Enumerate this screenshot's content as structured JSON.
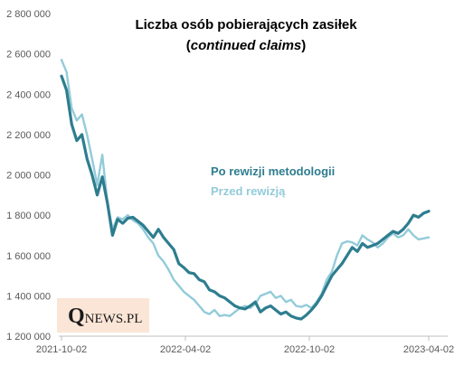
{
  "chart_data": {
    "type": "line",
    "title_line1": "Liczba osób pobierających zasiłek",
    "title_line2": "continued claims",
    "ylim": [
      1200000,
      2800000
    ],
    "y_ticks": [
      1200000,
      1400000,
      1600000,
      1800000,
      2000000,
      2200000,
      2400000,
      2600000,
      2800000
    ],
    "y_tick_labels": [
      "1 200 000",
      "1 400 000",
      "1 600 000",
      "1 800 000",
      "2 000 000",
      "2 200 000",
      "2 400 000",
      "2 600 000",
      "2 800 000"
    ],
    "x_ticks": [
      "2021-10-02",
      "2022-04-02",
      "2022-10-02",
      "2023-04-02"
    ],
    "grid": false,
    "legend_position": "center-right",
    "series": [
      {
        "name": "Po rewizji metodologii",
        "color": "#2e7d8f",
        "width": 3.2,
        "values": [
          2490000,
          2420000,
          2250000,
          2170000,
          2200000,
          2080000,
          2000000,
          1900000,
          1990000,
          1860000,
          1700000,
          1780000,
          1760000,
          1785000,
          1790000,
          1770000,
          1750000,
          1720000,
          1690000,
          1730000,
          1690000,
          1660000,
          1630000,
          1560000,
          1540000,
          1515000,
          1510000,
          1480000,
          1470000,
          1430000,
          1420000,
          1400000,
          1390000,
          1370000,
          1350000,
          1340000,
          1335000,
          1350000,
          1370000,
          1320000,
          1340000,
          1350000,
          1330000,
          1310000,
          1320000,
          1300000,
          1290000,
          1285000,
          1305000,
          1330000,
          1360000,
          1400000,
          1450000,
          1500000,
          1530000,
          1560000,
          1600000,
          1640000,
          1620000,
          1660000,
          1640000,
          1650000,
          1660000,
          1680000,
          1700000,
          1720000,
          1710000,
          1730000,
          1760000,
          1800000,
          1790000,
          1810000,
          1820000
        ]
      },
      {
        "name": "Przed rewizją",
        "color": "#93cbd9",
        "width": 2.4,
        "values": [
          2570000,
          2510000,
          2330000,
          2270000,
          2300000,
          2200000,
          2080000,
          1950000,
          2100000,
          1860000,
          1730000,
          1790000,
          1780000,
          1800000,
          1775000,
          1760000,
          1730000,
          1690000,
          1660000,
          1600000,
          1570000,
          1530000,
          1480000,
          1450000,
          1420000,
          1400000,
          1380000,
          1350000,
          1320000,
          1310000,
          1330000,
          1300000,
          1305000,
          1300000,
          1320000,
          1340000,
          1350000,
          1340000,
          1360000,
          1400000,
          1410000,
          1420000,
          1390000,
          1400000,
          1370000,
          1380000,
          1350000,
          1345000,
          1355000,
          1340000,
          1370000,
          1410000,
          1480000,
          1520000,
          1600000,
          1660000,
          1670000,
          1665000,
          1650000,
          1700000,
          1680000,
          1665000,
          1640000,
          1660000,
          1690000,
          1710000,
          1690000,
          1700000,
          1730000,
          1700000,
          1680000,
          1685000,
          1690000
        ]
      }
    ]
  },
  "logo": {
    "letter": "Q",
    "text": "NEWS.PL",
    "background": "#fbe5d6"
  }
}
